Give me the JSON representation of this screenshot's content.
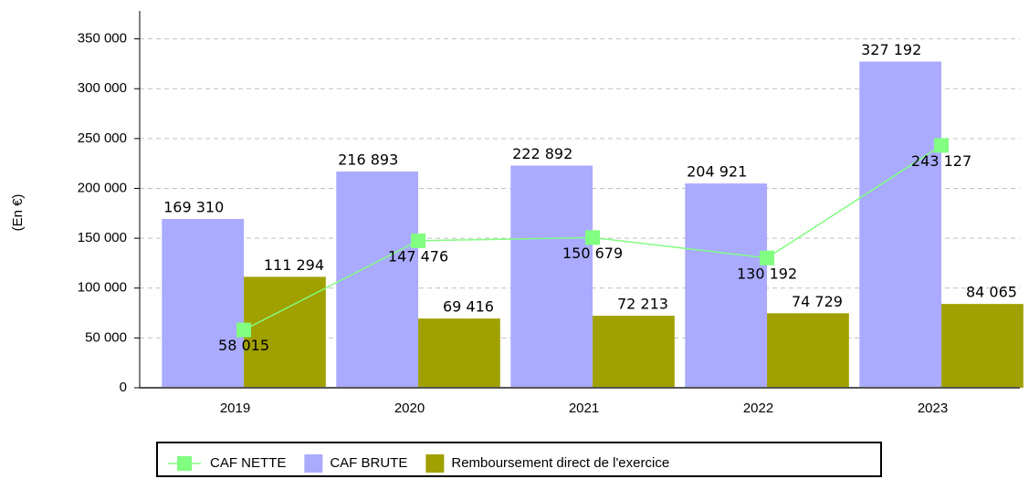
{
  "chart_data": {
    "type": "bar",
    "y_label": "(En €)",
    "categories": [
      "2019",
      "2020",
      "2021",
      "2022",
      "2023"
    ],
    "series": [
      {
        "name": "CAF NETTE",
        "type": "line",
        "color": "#80ff80",
        "values": [
          58015,
          147476,
          150679,
          130192,
          243127
        ],
        "value_labels": [
          "58 015",
          "147 476",
          "150 679",
          "130 192",
          "243 127"
        ]
      },
      {
        "name": "CAF BRUTE",
        "type": "bar",
        "color": "#aaaaff",
        "values": [
          169310,
          216893,
          222892,
          204921,
          327192
        ],
        "value_labels": [
          "169 310",
          "216 893",
          "222 892",
          "204 921",
          "327 192"
        ]
      },
      {
        "name": "Remboursement direct de l'exercice",
        "type": "bar",
        "color": "#a0a000",
        "values": [
          111294,
          69416,
          72213,
          74729,
          84065
        ],
        "value_labels": [
          "111 294",
          "69 416",
          "72 213",
          "74 729",
          "84 065"
        ]
      }
    ],
    "ylim": [
      0,
      378000
    ],
    "yticks": [
      0,
      {
        "value": 50000,
        "label": "50 000"
      },
      {
        "value": 100000,
        "label": "100 000"
      },
      {
        "value": 150000,
        "label": "150 000"
      },
      {
        "value": 200000,
        "label": "200 000"
      },
      {
        "value": 250000,
        "label": "250 000"
      },
      {
        "value": 300000,
        "label": "300 000"
      },
      {
        "value": 350000,
        "label": "350 000"
      }
    ],
    "grid": true,
    "legend": "bottom"
  }
}
